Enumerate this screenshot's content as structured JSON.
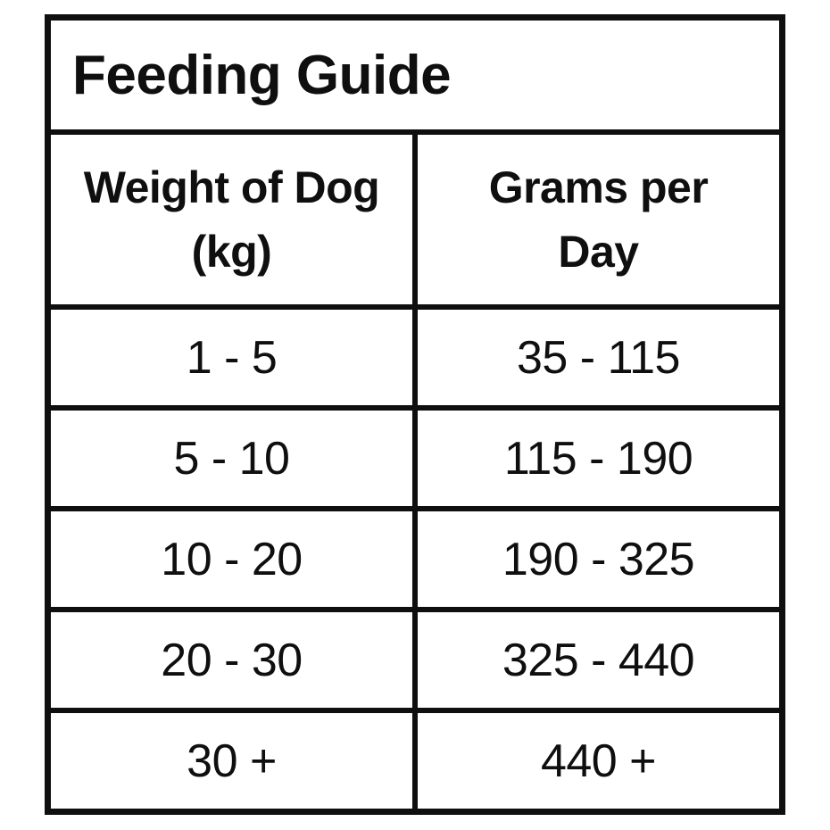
{
  "table": {
    "title": "Feeding Guide",
    "columns": [
      {
        "line1": "Weight of Dog",
        "line2": "(kg)"
      },
      {
        "line1": "Grams per",
        "line2": "Day"
      }
    ],
    "rows": [
      {
        "weight": "1 - 5",
        "grams": "35 - 115"
      },
      {
        "weight": "5 - 10",
        "grams": "115 - 190"
      },
      {
        "weight": "10 - 20",
        "grams": "190 - 325"
      },
      {
        "weight": "20 - 30",
        "grams": "325 - 440"
      },
      {
        "weight": "30 +",
        "grams": "440 +"
      }
    ],
    "colors": {
      "border": "#0f0f0f",
      "text": "#0f0f0f",
      "background": "#ffffff"
    }
  }
}
